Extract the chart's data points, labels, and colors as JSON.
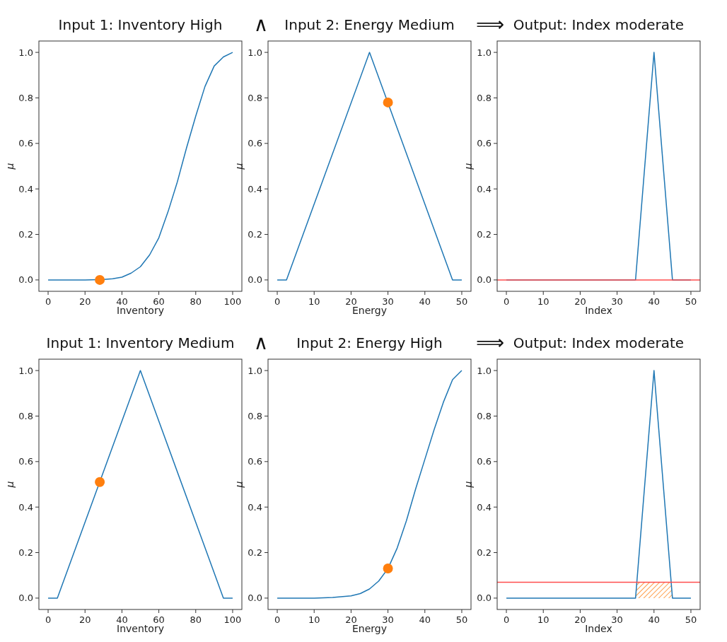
{
  "chart_data": [
    {
      "type": "line",
      "title": "Input 1: Inventory High",
      "xlabel": "Inventory",
      "ylabel": "μ",
      "xlim": [
        -5,
        105
      ],
      "xticks": [
        0,
        20,
        40,
        60,
        80,
        100
      ],
      "ylim": [
        -0.05,
        1.05
      ],
      "yticks": [
        {
          "value": 0,
          "label": "0.0"
        },
        {
          "value": 0.2,
          "label": "0.2"
        },
        {
          "value": 0.4,
          "label": "0.4"
        },
        {
          "value": 0.6,
          "label": "0.6"
        },
        {
          "value": 0.8,
          "label": "0.8"
        },
        {
          "value": 1,
          "label": "1.0"
        }
      ],
      "series": [
        {
          "type": "line",
          "color": "#1f77b4",
          "x": [
            0,
            20,
            30,
            35,
            40,
            45,
            50,
            55,
            60,
            65,
            70,
            75,
            80,
            85,
            90,
            95,
            100
          ],
          "values": [
            0,
            0,
            0.002,
            0.005,
            0.012,
            0.03,
            0.058,
            0.11,
            0.185,
            0.3,
            0.43,
            0.58,
            0.72,
            0.85,
            0.94,
            0.98,
            1.0
          ]
        },
        {
          "type": "scatter",
          "color": "#ff7f0e",
          "marker": "circle",
          "x": [
            28
          ],
          "values": [
            0.0
          ]
        }
      ]
    },
    {
      "type": "line",
      "title": "Input 2: Energy Medium",
      "xlabel": "Energy",
      "ylabel": "μ",
      "annotations": [
        "∧"
      ],
      "xlim": [
        -2.5,
        52.5
      ],
      "xticks": [
        0,
        10,
        20,
        30,
        40,
        50
      ],
      "ylim": [
        -0.05,
        1.05
      ],
      "yticks": [
        {
          "value": 0,
          "label": "0.0"
        },
        {
          "value": 0.2,
          "label": "0.2"
        },
        {
          "value": 0.4,
          "label": "0.4"
        },
        {
          "value": 0.6,
          "label": "0.6"
        },
        {
          "value": 0.8,
          "label": "0.8"
        },
        {
          "value": 1,
          "label": "1.0"
        }
      ],
      "series": [
        {
          "type": "line",
          "color": "#1f77b4",
          "x": [
            0,
            2.5,
            25,
            47.5,
            50
          ],
          "values": [
            0,
            0,
            1,
            0,
            0
          ]
        },
        {
          "type": "scatter",
          "color": "#ff7f0e",
          "marker": "circle",
          "x": [
            30
          ],
          "values": [
            0.78
          ]
        }
      ]
    },
    {
      "type": "line",
      "title": "Output: Index moderate",
      "xlabel": "Index",
      "ylabel": "μ",
      "annotations": [
        "⟹"
      ],
      "xlim": [
        -2.5,
        52.5
      ],
      "xticks": [
        0,
        10,
        20,
        30,
        40,
        50
      ],
      "ylim": [
        -0.05,
        1.05
      ],
      "yticks": [
        {
          "value": 0,
          "label": "0.0"
        },
        {
          "value": 0.2,
          "label": "0.2"
        },
        {
          "value": 0.4,
          "label": "0.4"
        },
        {
          "value": 0.6,
          "label": "0.6"
        },
        {
          "value": 0.8,
          "label": "0.8"
        },
        {
          "value": 1,
          "label": "1.0"
        }
      ],
      "series": [
        {
          "type": "line",
          "color": "#1f77b4",
          "x": [
            0,
            35,
            40,
            45,
            50
          ],
          "values": [
            0,
            0,
            1,
            0,
            0
          ]
        }
      ],
      "ref_lines": [
        {
          "axis": "y",
          "value": 0.0,
          "color": "#ff4d4d"
        }
      ]
    },
    {
      "type": "line",
      "title": "Input 1: Inventory Medium",
      "xlabel": "Inventory",
      "ylabel": "μ",
      "xlim": [
        -5,
        105
      ],
      "xticks": [
        0,
        20,
        40,
        60,
        80,
        100
      ],
      "ylim": [
        -0.05,
        1.05
      ],
      "yticks": [
        {
          "value": 0,
          "label": "0.0"
        },
        {
          "value": 0.2,
          "label": "0.2"
        },
        {
          "value": 0.4,
          "label": "0.4"
        },
        {
          "value": 0.6,
          "label": "0.6"
        },
        {
          "value": 0.8,
          "label": "0.8"
        },
        {
          "value": 1,
          "label": "1.0"
        }
      ],
      "series": [
        {
          "type": "line",
          "color": "#1f77b4",
          "x": [
            0,
            5,
            50,
            95,
            100
          ],
          "values": [
            0,
            0,
            1,
            0,
            0
          ]
        },
        {
          "type": "scatter",
          "color": "#ff7f0e",
          "marker": "circle",
          "x": [
            28
          ],
          "values": [
            0.51
          ]
        }
      ]
    },
    {
      "type": "line",
      "title": "Input 2: Energy High",
      "xlabel": "Energy",
      "ylabel": "μ",
      "annotations": [
        "∧"
      ],
      "xlim": [
        -2.5,
        52.5
      ],
      "xticks": [
        0,
        10,
        20,
        30,
        40,
        50
      ],
      "ylim": [
        -0.05,
        1.05
      ],
      "yticks": [
        {
          "value": 0,
          "label": "0.0"
        },
        {
          "value": 0.2,
          "label": "0.2"
        },
        {
          "value": 0.4,
          "label": "0.4"
        },
        {
          "value": 0.6,
          "label": "0.6"
        },
        {
          "value": 0.8,
          "label": "0.8"
        },
        {
          "value": 1,
          "label": "1.0"
        }
      ],
      "series": [
        {
          "type": "line",
          "color": "#1f77b4",
          "x": [
            0,
            10,
            15,
            20,
            22.5,
            25,
            27.5,
            30,
            32.5,
            35,
            37.5,
            40,
            42.5,
            45,
            47.5,
            50
          ],
          "values": [
            0,
            0,
            0.003,
            0.01,
            0.02,
            0.04,
            0.075,
            0.13,
            0.22,
            0.34,
            0.48,
            0.61,
            0.74,
            0.86,
            0.96,
            1.0
          ]
        },
        {
          "type": "scatter",
          "color": "#ff7f0e",
          "marker": "circle",
          "x": [
            30
          ],
          "values": [
            0.13
          ]
        }
      ]
    },
    {
      "type": "line",
      "title": "Output: Index moderate",
      "xlabel": "Index",
      "ylabel": "μ",
      "annotations": [
        "⟹"
      ],
      "xlim": [
        -2.5,
        52.5
      ],
      "xticks": [
        0,
        10,
        20,
        30,
        40,
        50
      ],
      "ylim": [
        -0.05,
        1.05
      ],
      "yticks": [
        {
          "value": 0,
          "label": "0.0"
        },
        {
          "value": 0.2,
          "label": "0.2"
        },
        {
          "value": 0.4,
          "label": "0.4"
        },
        {
          "value": 0.6,
          "label": "0.6"
        },
        {
          "value": 0.8,
          "label": "0.8"
        },
        {
          "value": 1,
          "label": "1.0"
        }
      ],
      "series": [
        {
          "type": "area",
          "color": "#ff7f0e",
          "x": [
            35,
            35.35,
            44.65,
            45
          ],
          "values": [
            0,
            0.07,
            0.07,
            0
          ]
        },
        {
          "type": "line",
          "color": "#1f77b4",
          "x": [
            0,
            35,
            40,
            45,
            50
          ],
          "values": [
            0,
            0,
            1,
            0,
            0
          ]
        }
      ],
      "ref_lines": [
        {
          "axis": "y",
          "value": 0.07,
          "color": "#ff4d4d"
        }
      ]
    }
  ]
}
